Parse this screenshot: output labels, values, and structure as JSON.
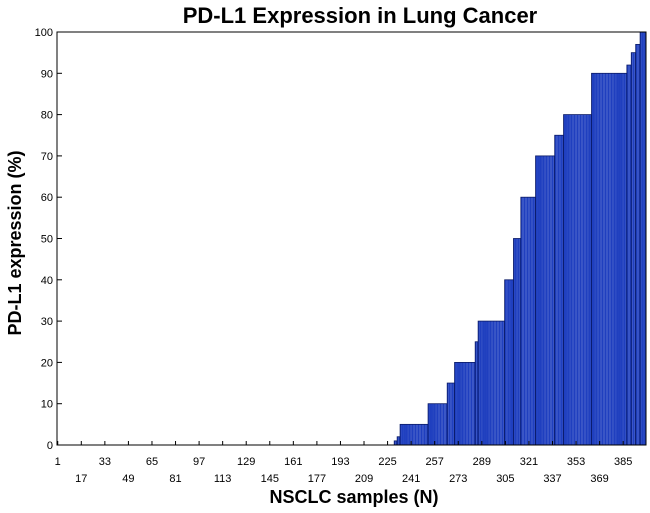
{
  "chart_data": {
    "type": "bar",
    "title": "PD-L1 Expression in Lung Cancer",
    "xlabel": "NSCLC samples (N)",
    "ylabel": "PD-L1 expression (%)",
    "n_samples": 400,
    "xlim": [
      1,
      400
    ],
    "ylim": [
      0,
      100
    ],
    "y_ticks": [
      0,
      10,
      20,
      30,
      40,
      50,
      60,
      70,
      80,
      90,
      100
    ],
    "x_ticks_top": [
      "1",
      "33",
      "65",
      "97",
      "129",
      "161",
      "193",
      "225",
      "257",
      "289",
      "321",
      "353",
      "385"
    ],
    "x_ticks_bottom": [
      "17",
      "49",
      "81",
      "113",
      "145",
      "177",
      "209",
      "241",
      "273",
      "305",
      "337",
      "369"
    ],
    "bar_color": "#1f3fbf",
    "bar_edge_color": "#0a1a66",
    "grid": false,
    "value_runs": [
      {
        "from": 1,
        "to": 229,
        "value": 0
      },
      {
        "from": 230,
        "to": 231,
        "value": 1
      },
      {
        "from": 232,
        "to": 233,
        "value": 2
      },
      {
        "from": 234,
        "to": 252,
        "value": 5
      },
      {
        "from": 253,
        "to": 265,
        "value": 10
      },
      {
        "from": 266,
        "to": 270,
        "value": 15
      },
      {
        "from": 271,
        "to": 284,
        "value": 20
      },
      {
        "from": 285,
        "to": 286,
        "value": 25
      },
      {
        "from": 287,
        "to": 304,
        "value": 30
      },
      {
        "from": 305,
        "to": 310,
        "value": 40
      },
      {
        "from": 311,
        "to": 315,
        "value": 50
      },
      {
        "from": 316,
        "to": 325,
        "value": 60
      },
      {
        "from": 326,
        "to": 338,
        "value": 70
      },
      {
        "from": 339,
        "to": 344,
        "value": 75
      },
      {
        "from": 345,
        "to": 363,
        "value": 80
      },
      {
        "from": 364,
        "to": 387,
        "value": 90
      },
      {
        "from": 388,
        "to": 390,
        "value": 92
      },
      {
        "from": 391,
        "to": 393,
        "value": 95
      },
      {
        "from": 394,
        "to": 396,
        "value": 97
      },
      {
        "from": 397,
        "to": 400,
        "value": 100
      }
    ]
  }
}
